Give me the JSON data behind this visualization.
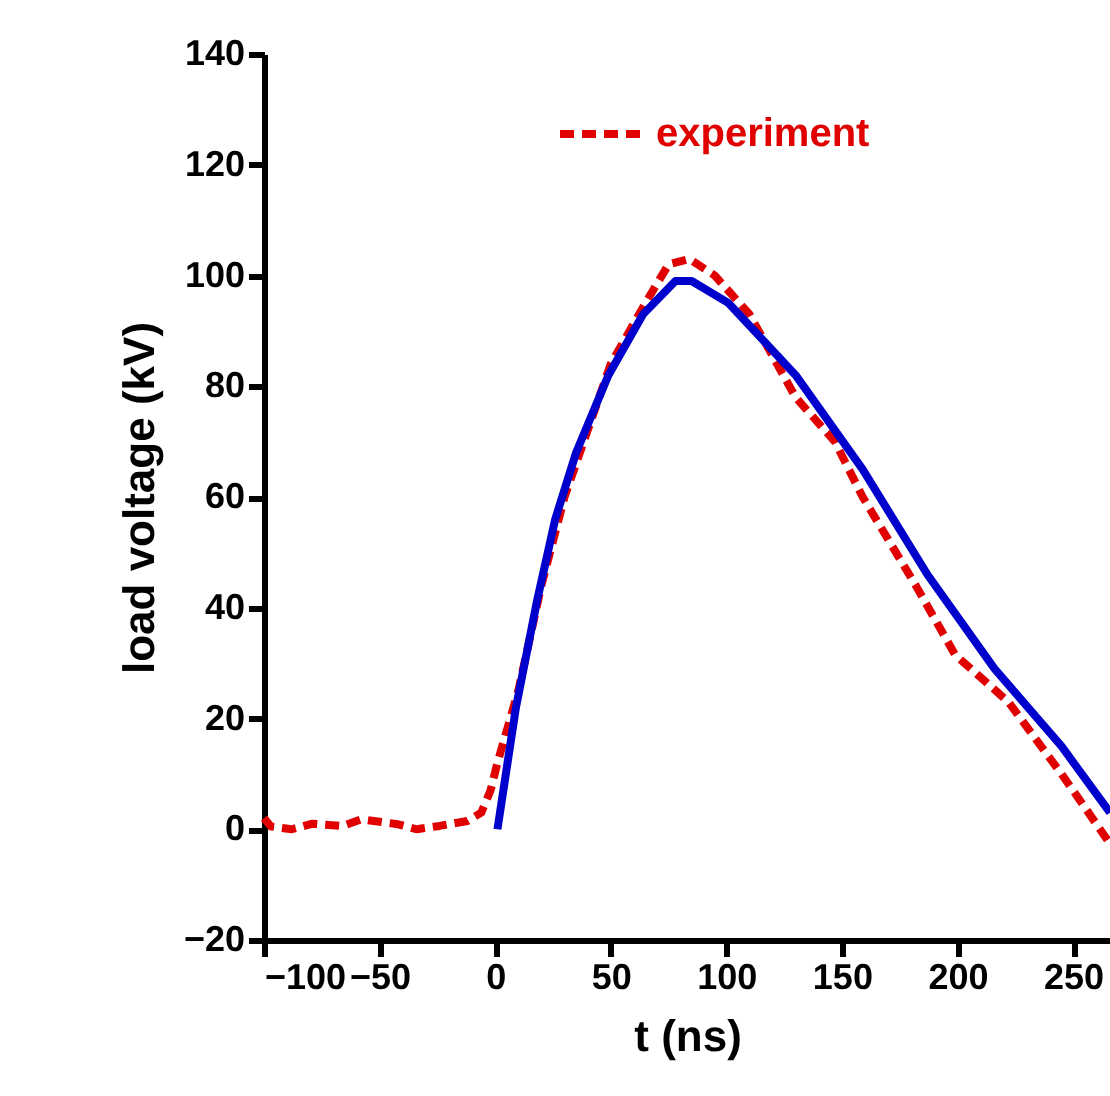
{
  "chart_data": {
    "type": "line",
    "xlabel": "t (ns)",
    "ylabel": "load voltage (kV)",
    "xlim": [
      -100,
      266
    ],
    "xticks": [
      -100,
      -50,
      0,
      50,
      100,
      150,
      200,
      250
    ],
    "ylim": [
      -20,
      140
    ],
    "yticks": [
      -20,
      0,
      20,
      40,
      60,
      80,
      100,
      120,
      140
    ],
    "grid": false,
    "legend": "top",
    "marker": "none",
    "series": [
      {
        "name": "experiment",
        "color": "#e00000",
        "line_style": "dashed",
        "x": [
          -100,
          -97,
          -88,
          -79,
          -66,
          -58,
          -42,
          -34,
          -24,
          -12,
          -6,
          -2,
          1,
          10,
          20,
          30,
          50,
          65,
          75,
          84,
          95,
          110,
          130,
          147,
          159,
          182,
          199,
          222,
          245,
          265
        ],
        "values": [
          2,
          0.5,
          0,
          1,
          0.6,
          1.8,
          0.9,
          0,
          0.6,
          1.5,
          3,
          7,
          12,
          25,
          44,
          60,
          84,
          95,
          102,
          103,
          100,
          93,
          78,
          70,
          60,
          44,
          31.5,
          23,
          10,
          -2
        ]
      },
      {
        "color": "#0000cc",
        "line_style": "solid",
        "x": [
          1,
          9,
          18,
          26,
          35,
          49,
          64,
          78,
          85,
          101,
          130,
          159,
          187,
          216,
          245,
          266
        ],
        "values": [
          0,
          22,
          41,
          56,
          68,
          82,
          93,
          99,
          99,
          95,
          82,
          65,
          46,
          29,
          15,
          3
        ]
      }
    ]
  }
}
